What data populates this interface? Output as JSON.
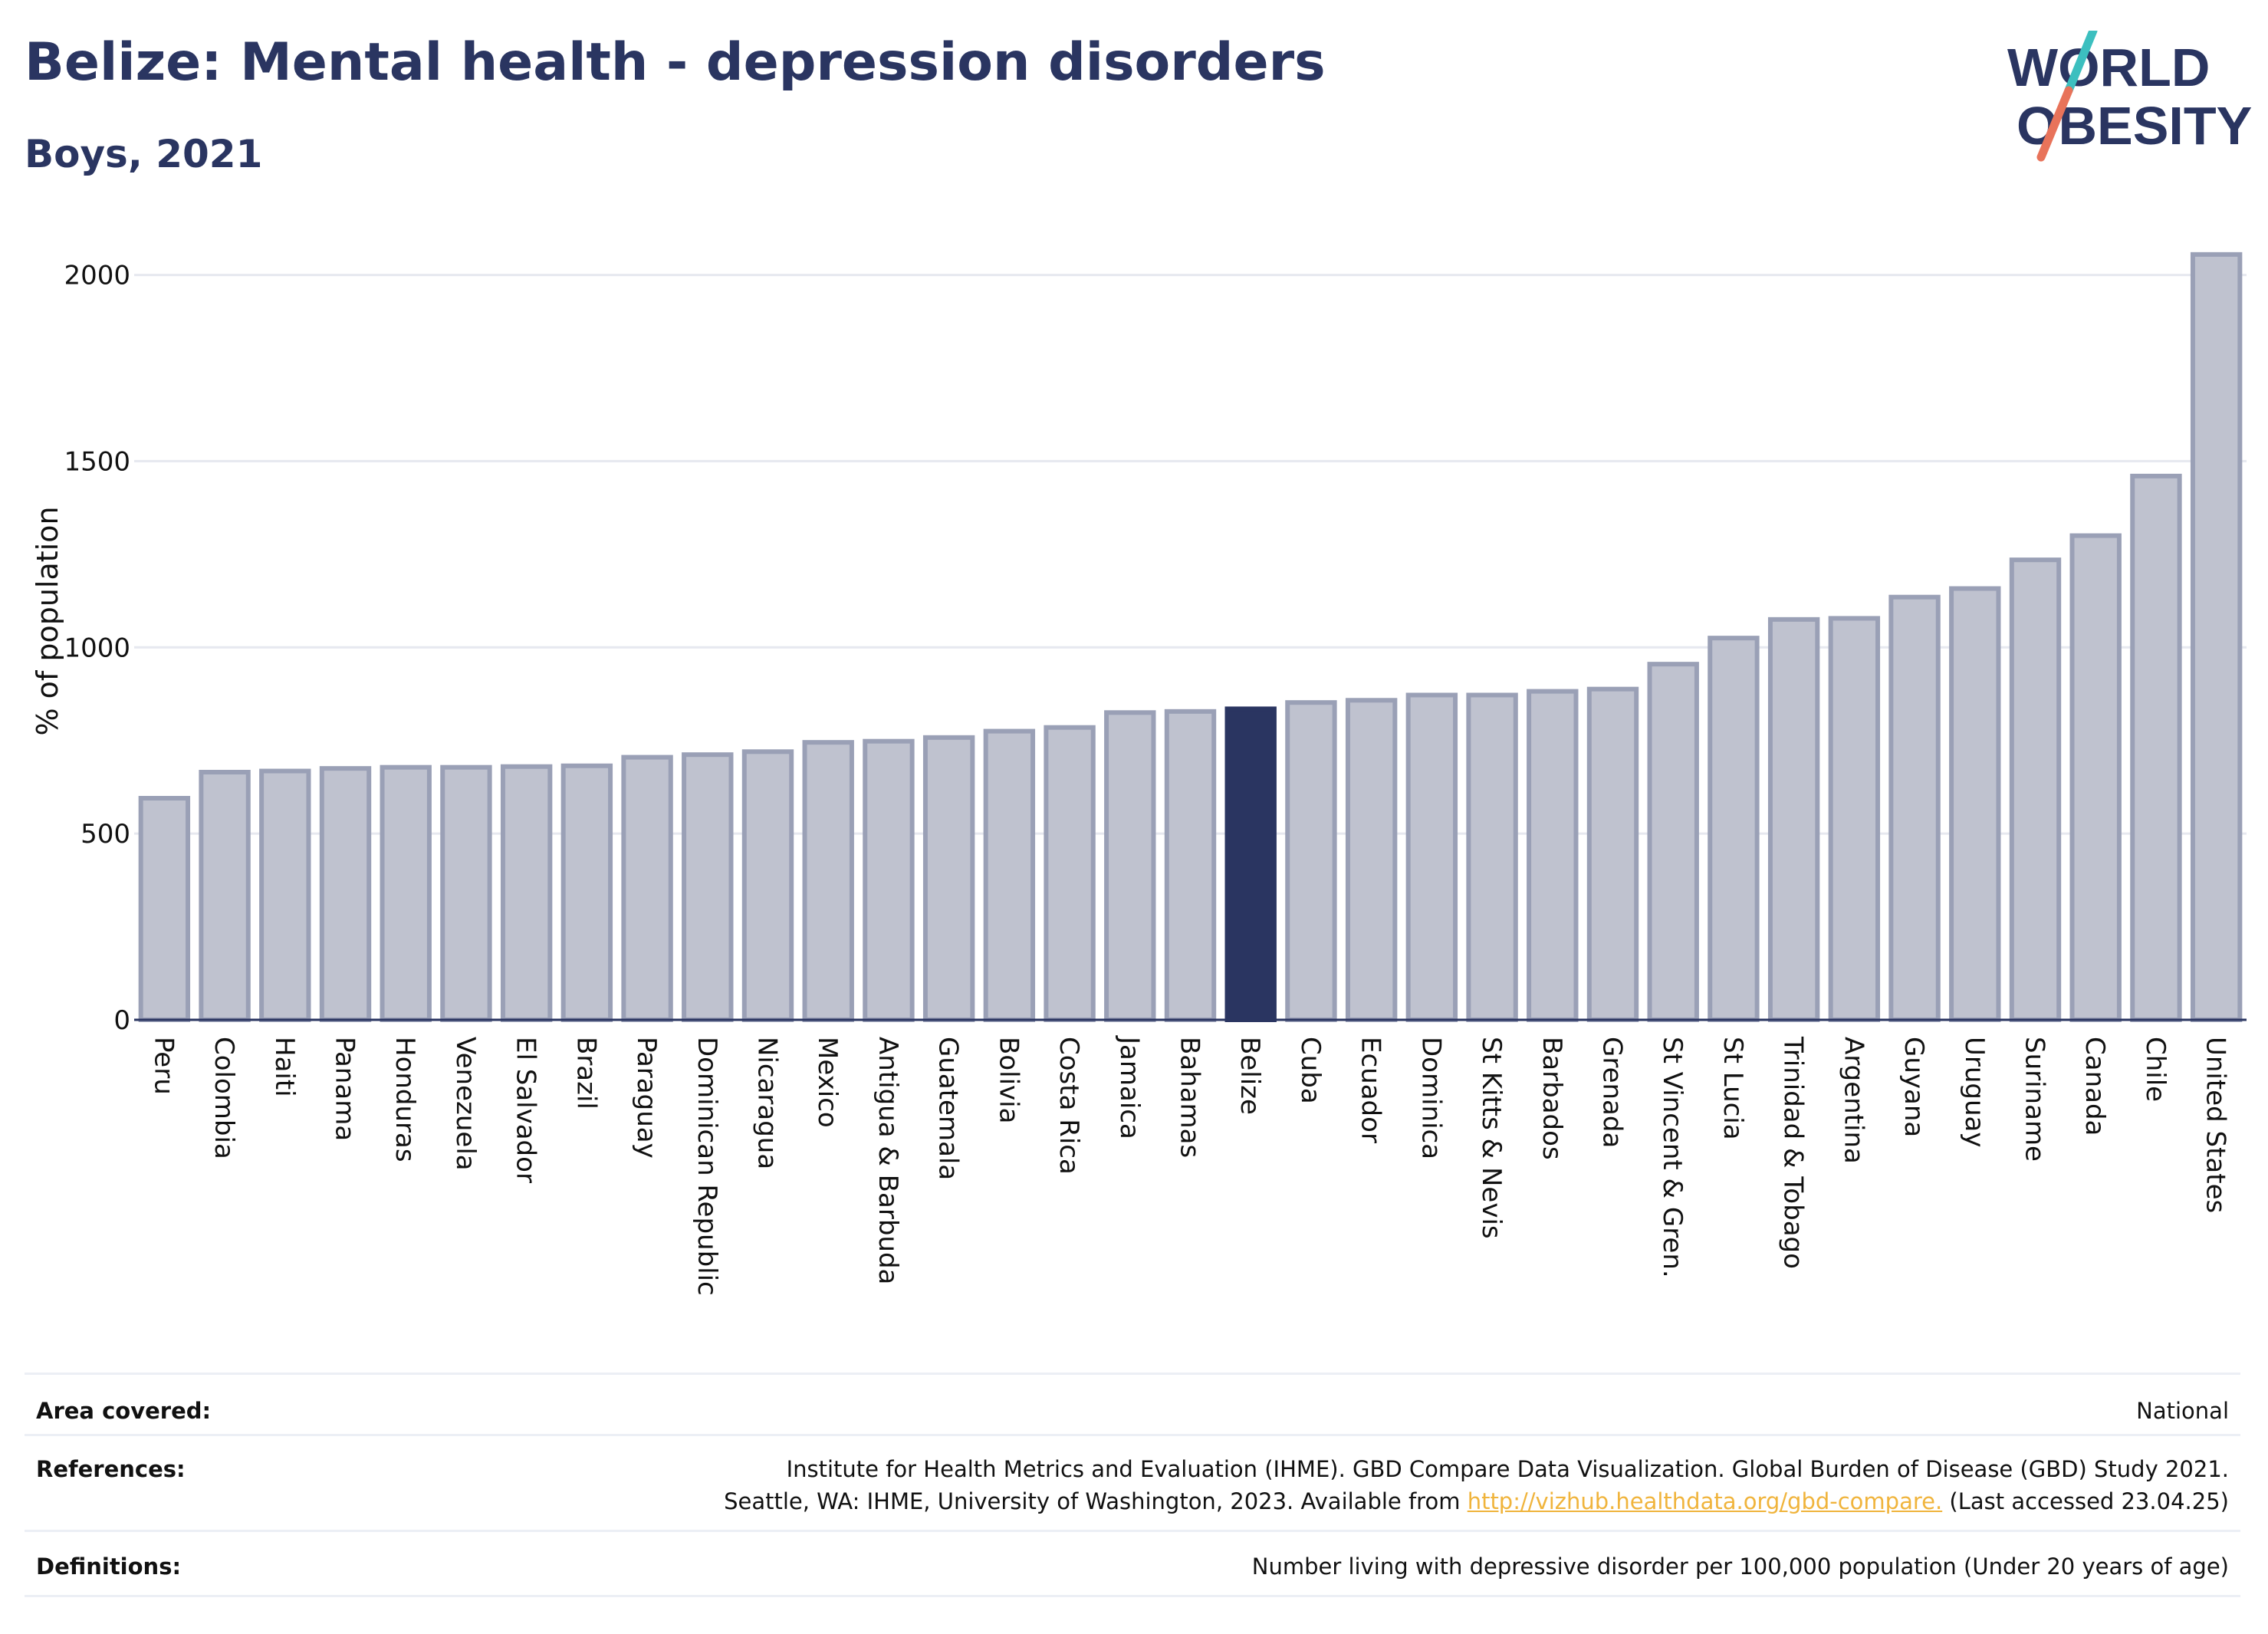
{
  "header": {
    "title": "Belize: Mental health - depression disorders",
    "subtitle": "Boys, 2021"
  },
  "logo": {
    "line1": "WORLD",
    "line2": "OBESITY",
    "colors": {
      "text": "#2a3561",
      "slash_top": "#3cbfbf",
      "slash_bottom": "#e8735a"
    }
  },
  "chart_data": {
    "type": "bar",
    "ylabel": "% of population",
    "ylim": [
      0,
      2100
    ],
    "yticks": [
      0,
      500,
      1000,
      1500,
      2000
    ],
    "grid": true,
    "highlight": "Belize",
    "colors": {
      "bar": "#bfc2cf",
      "bar_edge": "#9aa0b6",
      "highlight": "#2a3561",
      "grid": "#e6e8ef",
      "axis": "#2a3561"
    },
    "categories": [
      "Peru",
      "Colombia",
      "Haiti",
      "Panama",
      "Honduras",
      "Venezuela",
      "El Salvador",
      "Brazil",
      "Paraguay",
      "Dominican Republic",
      "Nicaragua",
      "Mexico",
      "Antigua & Barbuda",
      "Guatemala",
      "Bolivia",
      "Costa Rica",
      "Jamaica",
      "Bahamas",
      "Belize",
      "Cuba",
      "Ecuador",
      "Dominica",
      "St Kitts & Nevis",
      "Barbados",
      "Grenada",
      "St Vincent & Gren.",
      "St Lucia",
      "Trinidad & Tobago",
      "Argentina",
      "Guyana",
      "Uruguay",
      "Suriname",
      "Canada",
      "Chile",
      "United States"
    ],
    "values": [
      595,
      665,
      668,
      675,
      678,
      678,
      680,
      682,
      705,
      712,
      720,
      745,
      748,
      758,
      775,
      785,
      825,
      828,
      835,
      852,
      858,
      872,
      872,
      882,
      888,
      955,
      1025,
      1075,
      1078,
      1135,
      1158,
      1235,
      1300,
      1460,
      2055
    ]
  },
  "footer": {
    "area_label": "Area covered:",
    "area_value": "National",
    "references_label": "References:",
    "references_line1": "Institute for Health Metrics and Evaluation (IHME). GBD Compare Data Visualization. Global Burden of Disease (GBD) Study 2021.",
    "references_line2_pre": "Seattle, WA: IHME, University of Washington, 2023. Available from ",
    "references_link": "http://vizhub.healthdata.org/gbd-compare.",
    "references_line2_post": " (Last accessed 23.04.25)",
    "definitions_label": "Definitions:",
    "definitions_value": "Number living with depressive disorder per 100,000 population (Under 20 years of age)"
  }
}
